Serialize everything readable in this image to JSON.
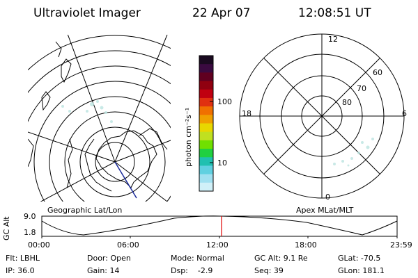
{
  "header": {
    "instrument": "Ultraviolet Imager",
    "date": "22 Apr 07",
    "time": "12:08:51 UT"
  },
  "colorbar": {
    "units": "photon cm⁻²s⁻¹",
    "tick_100": "100",
    "tick_10": "10",
    "colors_top_to_bottom": [
      "#1a0a20",
      "#3a0a40",
      "#600020",
      "#900010",
      "#c00010",
      "#e03010",
      "#f07000",
      "#f0a000",
      "#e8d800",
      "#c0e020",
      "#70e000",
      "#20d040",
      "#20c0b0",
      "#60d0e0",
      "#a0e0f0",
      "#d0f0f8"
    ]
  },
  "left_map": {
    "label": "Geographic Lat/Lon"
  },
  "right_map": {
    "label": "Apex MLat/MLT",
    "mlt_top": "12",
    "mlt_left": "18",
    "mlt_right": "6",
    "mlt_bottom": "0",
    "lat_60": "60",
    "lat_70": "70",
    "lat_80": "80"
  },
  "altitude_plot": {
    "ylabel": "GC Alt",
    "ytick_top": "9.0",
    "ytick_bottom": "1.8",
    "xticks": [
      "00:00",
      "06:00",
      "12:00",
      "18:00",
      "23:59"
    ],
    "current_time_marker_color": "#e00000"
  },
  "status": {
    "filter": "Flt: LBHL",
    "ip": "IP: 36.0",
    "door": "Door: Open",
    "gain": "Gain: 14",
    "mode": "Mode: Normal",
    "dsp": "Dsp:    -2.9",
    "gc_alt": "GC Alt: 9.1 Re",
    "seq": "Seq: 39",
    "glat": "GLat: -70.5",
    "glon": "GLon: 181.1"
  }
}
